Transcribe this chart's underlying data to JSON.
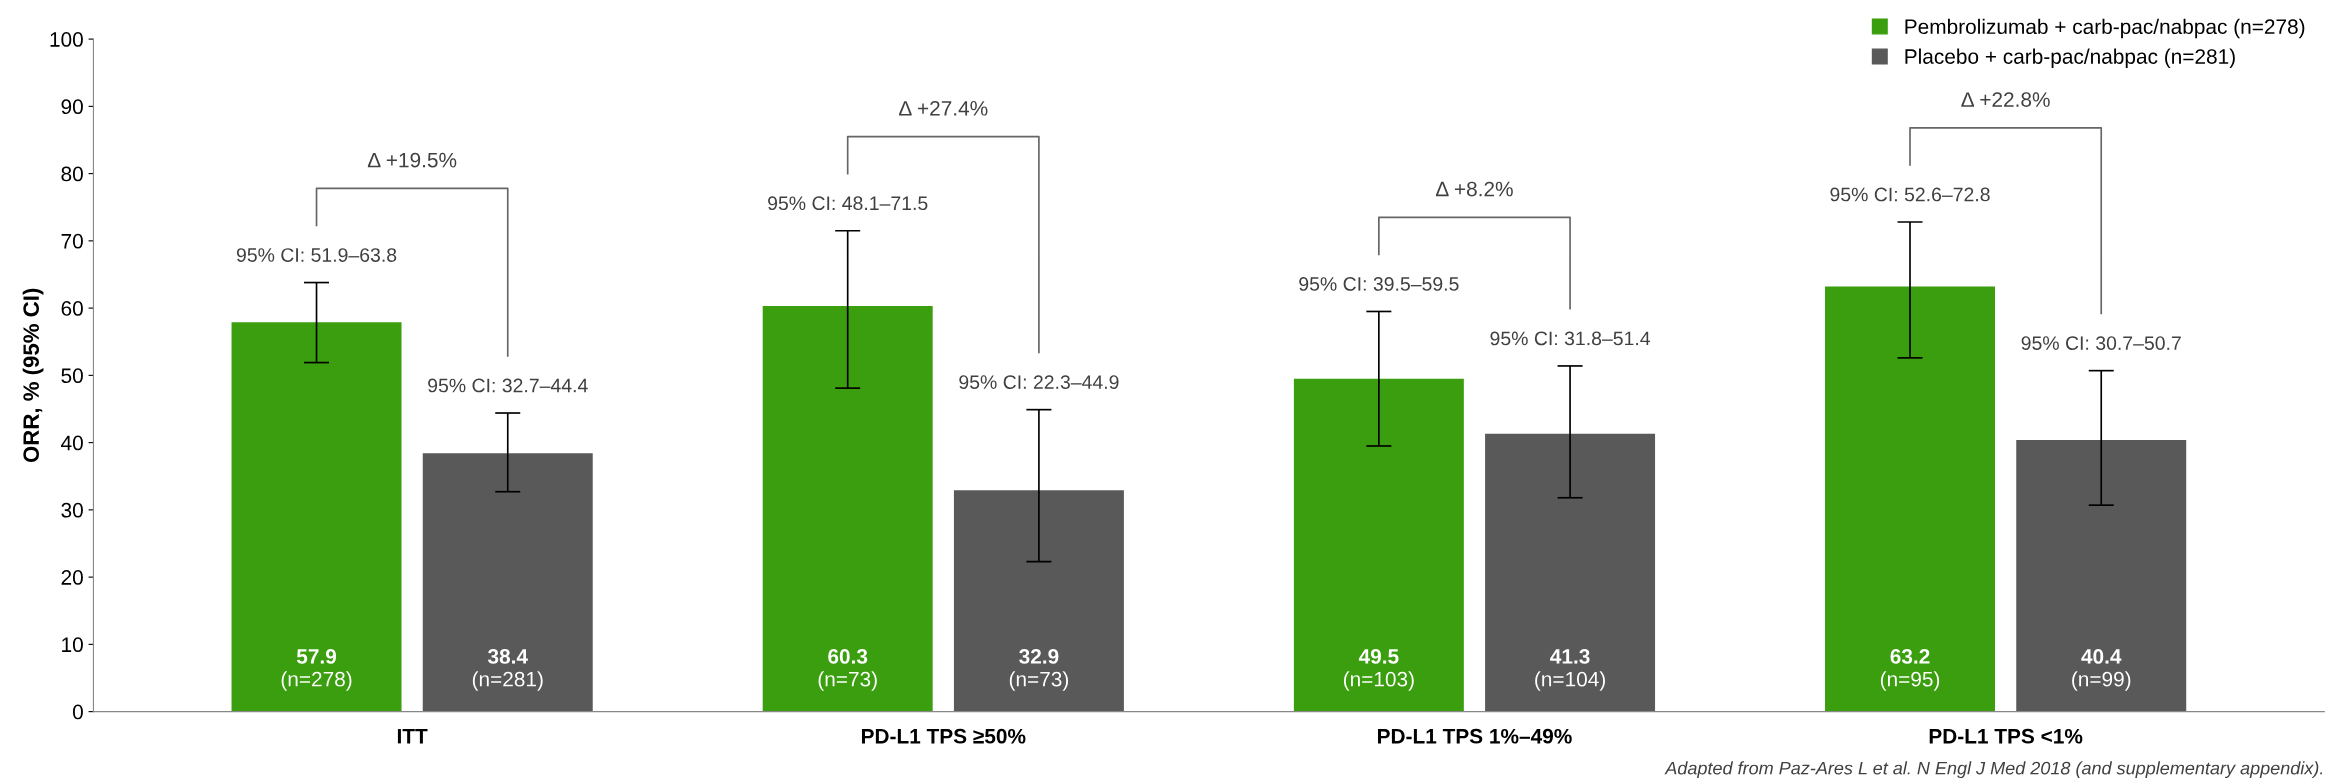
{
  "chart_data": {
    "type": "bar",
    "ylabel": "ORR, % (95% CI)",
    "categories": [
      "ITT",
      "PD-L1 TPS ≥50%",
      "PD-L1 TPS 1%–49%",
      "PD-L1 TPS <1%"
    ],
    "series": [
      {
        "name": "Pembrolizumab + carb-pac/nabpac (n=278)",
        "color": "#3a9e0f",
        "values": [
          57.9,
          60.3,
          49.5,
          63.2
        ],
        "errors": [
          [
            51.9,
            63.8
          ],
          [
            48.1,
            71.5
          ],
          [
            39.5,
            59.5
          ],
          [
            52.6,
            72.8
          ]
        ],
        "value_labels": [
          "57.9\n(n=278)",
          "60.3\n(n=73)",
          "49.5\n(n=103)",
          "63.2\n(n=95)"
        ]
      },
      {
        "name": "Placebo + carb-pac/nabpac (n=281)",
        "color": "#595959",
        "values": [
          38.4,
          32.9,
          41.3,
          40.4
        ],
        "errors": [
          [
            32.7,
            44.4
          ],
          [
            22.3,
            44.9
          ],
          [
            31.8,
            51.4
          ],
          [
            30.7,
            50.7
          ]
        ],
        "value_labels": [
          "38.4\n(n=281)",
          "32.9\n(n=73)",
          "41.3\n(n=104)",
          "40.4\n(n=99)"
        ]
      }
    ],
    "ylim": [
      0,
      100
    ],
    "yticks": [
      0,
      10,
      20,
      30,
      40,
      50,
      60,
      70,
      80,
      90,
      100
    ],
    "grid": false,
    "legend": "top right",
    "annotations": [
      "95% CI: 51.9–63.8",
      "95% CI: 32.7–44.4",
      "95% CI: 48.1–71.5",
      "95% CI: 22.3–44.9",
      "95% CI: 39.5–59.5",
      "95% CI: 31.8–51.4",
      "95% CI: 52.6–72.8",
      "95% CI: 30.7–50.7",
      "Δ +19.5%",
      "Δ +27.4%",
      "Δ +8.2%",
      "Δ +22.8%",
      "Adapted from Paz-Ares L et al. N Engl J Med 2018 (and supplementary appendix)."
    ]
  }
}
